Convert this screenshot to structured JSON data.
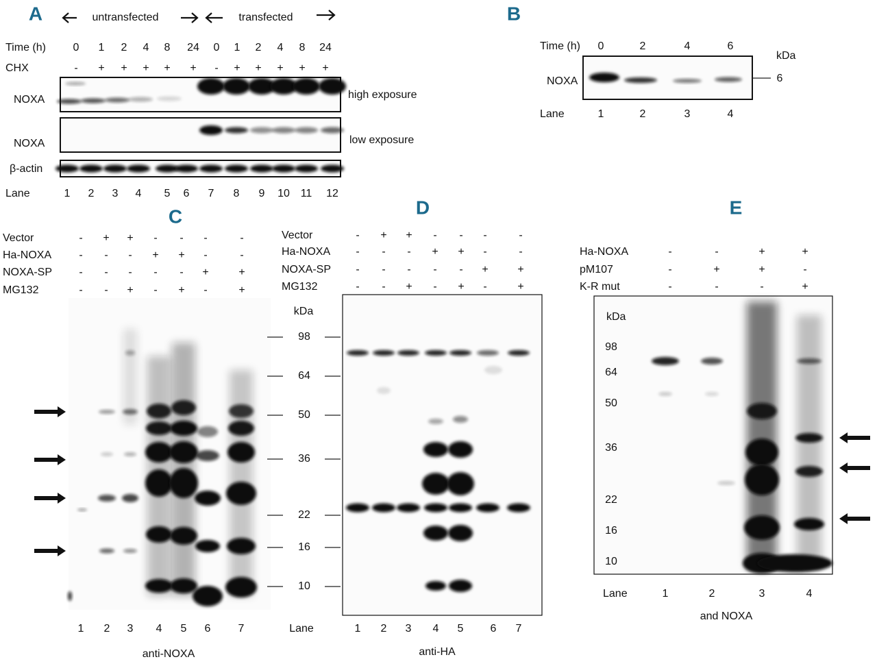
{
  "panel_a": {
    "letter": "A",
    "left_arrow_label": "untransfected",
    "right_arrow_label": "transfected",
    "time_label": "Time (h)",
    "times": [
      "0",
      "1",
      "2",
      "4",
      "8",
      "24",
      "0",
      "1",
      "2",
      "4",
      "8",
      "24"
    ],
    "chx_label": "CHX",
    "chx": [
      "-",
      "+",
      "+",
      "+",
      "+",
      "+",
      "-",
      "+",
      "+",
      "+",
      "+",
      "+"
    ],
    "blots": [
      {
        "label": "NOXA",
        "exposure": "high exposure"
      },
      {
        "label": "NOXA",
        "exposure": "low exposure"
      },
      {
        "label": "β-actin"
      }
    ],
    "lane_label": "Lane",
    "lanes": [
      "1",
      "2",
      "3",
      "4",
      "5",
      "6",
      "7",
      "8",
      "9",
      "10",
      "11",
      "12"
    ]
  },
  "panel_b": {
    "letter": "B",
    "time_label": "Time (h)",
    "times": [
      "0",
      "2",
      "4",
      "6"
    ],
    "marker_unit": "kDa",
    "marker": "6",
    "blot_label": "NOXA",
    "lane_label": "Lane",
    "lanes": [
      "1",
      "2",
      "3",
      "4"
    ]
  },
  "panel_c": {
    "letter": "C",
    "conditions": [
      {
        "label": "Vector",
        "signs": [
          "-",
          "+",
          "+",
          "-",
          "-",
          "-",
          "-"
        ]
      },
      {
        "label": "Ha-NOXA",
        "signs": [
          "-",
          "-",
          "-",
          "+",
          "+",
          "-",
          "-"
        ]
      },
      {
        "label": "NOXA-SP",
        "signs": [
          "-",
          "-",
          "-",
          "-",
          "-",
          "+",
          "+"
        ]
      },
      {
        "label": "MG132",
        "signs": [
          "-",
          "-",
          "+",
          "-",
          "+",
          "-",
          "+"
        ]
      }
    ],
    "lanes": [
      "1",
      "2",
      "3",
      "4",
      "5",
      "6",
      "7"
    ],
    "antibody": "anti-NOXA"
  },
  "markers_cd": {
    "unit": "kDa",
    "values": [
      "98",
      "64",
      "50",
      "36",
      "22",
      "16",
      "10"
    ]
  },
  "panel_d": {
    "letter": "D",
    "conditions": [
      {
        "label": "Vector",
        "signs": [
          "-",
          "+",
          "+",
          "-",
          "-",
          "-",
          "-"
        ]
      },
      {
        "label": "Ha-NOXA",
        "signs": [
          "-",
          "-",
          "-",
          "+",
          "+",
          "-",
          "-"
        ]
      },
      {
        "label": "NOXA-SP",
        "signs": [
          "-",
          "-",
          "-",
          "-",
          "-",
          "+",
          "+"
        ]
      },
      {
        "label": "MG132",
        "signs": [
          "-",
          "-",
          "+",
          "-",
          "+",
          "-",
          "+"
        ]
      }
    ],
    "lane_label": "Lane",
    "lanes": [
      "1",
      "2",
      "3",
      "4",
      "5",
      "6",
      "7"
    ],
    "antibody": "anti-HA"
  },
  "panel_e": {
    "letter": "E",
    "conditions": [
      {
        "label": "Ha-NOXA",
        "signs": [
          "-",
          "-",
          "+",
          "+"
        ]
      },
      {
        "label": "pM107",
        "signs": [
          "-",
          "+",
          "+",
          "-"
        ]
      },
      {
        "label": "K-R mut",
        "signs": [
          "-",
          "-",
          "-",
          "+"
        ]
      }
    ],
    "marker_unit": "kDa",
    "markers": [
      "98",
      "64",
      "50",
      "36",
      "22",
      "16",
      "10"
    ],
    "lane_label": "Lane",
    "lanes": [
      "1",
      "2",
      "3",
      "4"
    ],
    "antibody": "and NOXA"
  }
}
